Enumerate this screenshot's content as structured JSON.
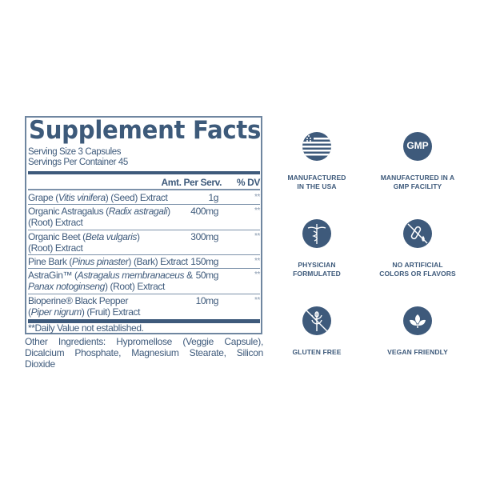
{
  "facts": {
    "title": "Supplement Facts",
    "serving_size": "Serving Size 3 Capsules",
    "servings_per_container": "Servings Per Container 45",
    "col_amount": "Amt. Per Serv.",
    "col_dv": "% DV",
    "rows": [
      {
        "name_plain_1": "Grape (",
        "name_italic_1": "Vitis vinifera",
        "name_plain_2": ") (Seed) Extract",
        "name_italic_2": "",
        "name_plain_3": "",
        "amount": "1g",
        "dv": "**"
      },
      {
        "name_plain_1": "Organic Astragalus (",
        "name_italic_1": "Radix astragali",
        "name_plain_2": ")",
        "name_italic_2": "",
        "name_plain_3": "(Root) Extract",
        "amount": "400mg",
        "dv": "**"
      },
      {
        "name_plain_1": "Organic Beet (",
        "name_italic_1": "Beta vulgaris",
        "name_plain_2": ")",
        "name_italic_2": "",
        "name_plain_3": "(Root) Extract",
        "amount": "300mg",
        "dv": "**"
      },
      {
        "name_plain_1": "Pine Bark (",
        "name_italic_1": "Pinus pinaster",
        "name_plain_2": ") (Bark) Extract",
        "name_italic_2": "",
        "name_plain_3": "",
        "amount": "150mg",
        "dv": "**"
      },
      {
        "name_plain_1": "AstraGin™ (",
        "name_italic_1": "Astragalus membranaceus",
        "name_plain_2": " &",
        "name_italic_2": "Panax notoginseng",
        "name_plain_3": ") (Root) Extract",
        "amount": "50mg",
        "dv": "**"
      },
      {
        "name_plain_1": "Bioperine® Black Pepper",
        "name_italic_1": "",
        "name_plain_2": "(",
        "name_italic_2": "Piper nigrum",
        "name_plain_3": ") (Fruit) Extract",
        "amount": "10mg",
        "dv": "**"
      }
    ],
    "footnote": "**Daily Value not established.",
    "other_ingredients": "Other Ingredients: Hypromellose (Veggie Capsule), Dicalcium Phosphate, Magnesium Stearate, Silicon Dioxide"
  },
  "badges": [
    {
      "icon": "usa-flag-icon",
      "line1": "MANUFACTURED",
      "line2": "IN THE USA"
    },
    {
      "icon": "gmp-icon",
      "text": "GMP",
      "line1": "MANUFACTURED IN A",
      "line2": "GMP FACILITY"
    },
    {
      "icon": "caduceus-icon",
      "line1": "PHYSICIAN",
      "line2": "FORMULATED"
    },
    {
      "icon": "no-artificial-icon",
      "line1": "NO ARTIFICIAL",
      "line2": "COLORS OR FLAVORS"
    },
    {
      "icon": "gluten-free-icon",
      "line1": "GLUTEN FREE",
      "line2": ""
    },
    {
      "icon": "vegan-leaf-icon",
      "line1": "VEGAN FRIENDLY",
      "line2": ""
    }
  ],
  "colors": {
    "primary": "#3e5a7b",
    "border": "#6f86a0"
  }
}
